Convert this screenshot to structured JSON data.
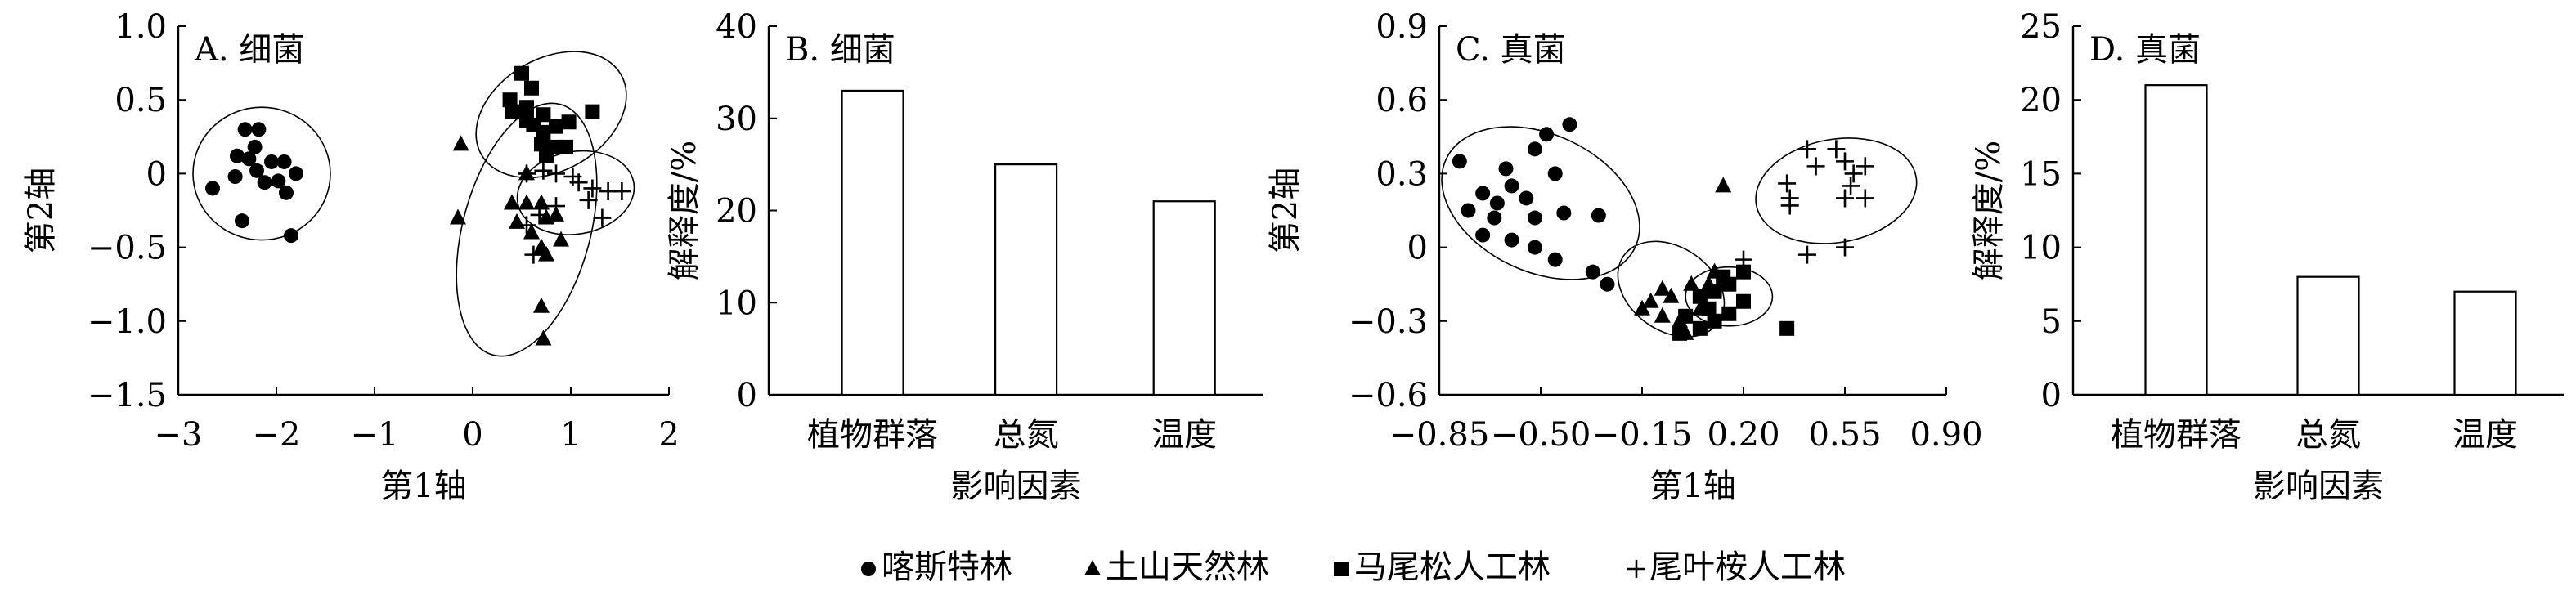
{
  "legend": {
    "items": [
      {
        "symbol": "circle",
        "label": "喀斯特林"
      },
      {
        "symbol": "triangle",
        "label": "土山天然林"
      },
      {
        "symbol": "square",
        "label": "马尾松人工林"
      },
      {
        "symbol": "plus",
        "label": "尾叶桉人工林"
      }
    ]
  },
  "chart_data": [
    {
      "id": "A",
      "type": "scatter",
      "title": "A. 细菌",
      "xlabel": "第1轴",
      "ylabel": "第2轴",
      "xlim": [
        -3,
        2
      ],
      "ylim": [
        -1.5,
        1.0
      ],
      "xticks": [
        "−3",
        "−2",
        "−1",
        "0",
        "1",
        "2"
      ],
      "yticks": [
        "1.0",
        "0.5",
        "0",
        "−0.5",
        "−1.0",
        "−1.5"
      ],
      "series": [
        {
          "name": "喀斯特林",
          "marker": "circle",
          "points": [
            [
              -2.32,
              0.3
            ],
            [
              -2.18,
              0.3
            ],
            [
              -2.4,
              0.12
            ],
            [
              -2.28,
              0.1
            ],
            [
              -2.2,
              0.02
            ],
            [
              -2.05,
              0.08
            ],
            [
              -1.92,
              0.08
            ],
            [
              -1.8,
              0.0
            ],
            [
              -2.65,
              -0.1
            ],
            [
              -2.12,
              -0.06
            ],
            [
              -1.98,
              -0.05
            ],
            [
              -1.9,
              -0.13
            ],
            [
              -2.35,
              -0.32
            ],
            [
              -1.85,
              -0.42
            ],
            [
              -2.42,
              -0.02
            ],
            [
              -2.22,
              0.18
            ]
          ]
        },
        {
          "name": "土山天然林",
          "marker": "triangle",
          "points": [
            [
              -0.12,
              0.2
            ],
            [
              0.55,
              0.0
            ],
            [
              0.4,
              -0.2
            ],
            [
              0.55,
              -0.2
            ],
            [
              0.7,
              -0.2
            ],
            [
              0.75,
              -0.3
            ],
            [
              0.85,
              -0.28
            ],
            [
              0.6,
              -0.4
            ],
            [
              0.7,
              -0.5
            ],
            [
              0.9,
              -0.45
            ],
            [
              0.75,
              -0.55
            ],
            [
              0.7,
              -0.9
            ],
            [
              0.72,
              -1.12
            ],
            [
              -0.15,
              -0.3
            ],
            [
              0.45,
              -0.33
            ]
          ]
        },
        {
          "name": "马尾松人工林",
          "marker": "square",
          "points": [
            [
              0.5,
              0.68
            ],
            [
              0.6,
              0.58
            ],
            [
              0.38,
              0.5
            ],
            [
              0.55,
              0.45
            ],
            [
              0.72,
              0.4
            ],
            [
              0.62,
              0.33
            ],
            [
              0.72,
              0.28
            ],
            [
              0.85,
              0.32
            ],
            [
              0.98,
              0.35
            ],
            [
              1.22,
              0.42
            ],
            [
              0.7,
              0.2
            ],
            [
              0.85,
              0.18
            ],
            [
              0.95,
              0.18
            ],
            [
              0.75,
              0.12
            ],
            [
              0.4,
              0.42
            ],
            [
              0.55,
              0.36
            ]
          ]
        },
        {
          "name": "尾叶桉人工林",
          "marker": "plus",
          "points": [
            [
              0.55,
              0.0
            ],
            [
              0.72,
              0.02
            ],
            [
              0.85,
              0.0
            ],
            [
              1.02,
              -0.02
            ],
            [
              1.08,
              -0.06
            ],
            [
              1.22,
              -0.1
            ],
            [
              1.38,
              -0.12
            ],
            [
              1.52,
              -0.12
            ],
            [
              1.18,
              -0.18
            ],
            [
              1.32,
              -0.3
            ],
            [
              0.55,
              -0.35
            ],
            [
              0.62,
              -0.55
            ],
            [
              0.85,
              -0.22
            ],
            [
              0.68,
              -0.28
            ]
          ]
        }
      ],
      "ellipses": [
        {
          "cx": -2.15,
          "cy": 0.0,
          "rx": 0.7,
          "ry": 0.45,
          "rot": 0
        },
        {
          "cx": 0.8,
          "cy": 0.4,
          "rx": 0.82,
          "ry": 0.38,
          "rot": -30
        },
        {
          "cx": 0.55,
          "cy": -0.38,
          "rx": 0.65,
          "ry": 0.88,
          "rot": 15
        },
        {
          "cx": 1.05,
          "cy": -0.13,
          "rx": 0.6,
          "ry": 0.28,
          "rot": -10
        }
      ]
    },
    {
      "id": "B",
      "type": "bar",
      "title": "B. 细菌",
      "xlabel": "影响因素",
      "ylabel": "解释度/%",
      "categories": [
        "植物群落",
        "总氮",
        "温度"
      ],
      "values": [
        33,
        25,
        21
      ],
      "ylim": [
        0,
        40
      ],
      "yticks": [
        "40",
        "30",
        "20",
        "10",
        "0"
      ]
    },
    {
      "id": "C",
      "type": "scatter",
      "title": "C. 真菌",
      "xlabel": "第1轴",
      "ylabel": "第2轴",
      "xlim": [
        -0.85,
        0.9
      ],
      "ylim": [
        -0.6,
        0.9
      ],
      "xticks": [
        "−0.85",
        "−0.50",
        "−0.15",
        "0.20",
        "0.55",
        "0.90"
      ],
      "yticks": [
        "0.9",
        "0.6",
        "0.3",
        "0",
        "−0.3",
        "−0.6"
      ],
      "series": [
        {
          "name": "喀斯特林",
          "marker": "circle",
          "points": [
            [
              -0.4,
              0.5
            ],
            [
              -0.48,
              0.46
            ],
            [
              -0.52,
              0.4
            ],
            [
              -0.78,
              0.35
            ],
            [
              -0.62,
              0.32
            ],
            [
              -0.45,
              0.3
            ],
            [
              -0.7,
              0.22
            ],
            [
              -0.6,
              0.25
            ],
            [
              -0.65,
              0.18
            ],
            [
              -0.55,
              0.2
            ],
            [
              -0.75,
              0.15
            ],
            [
              -0.66,
              0.12
            ],
            [
              -0.52,
              0.12
            ],
            [
              -0.42,
              0.14
            ],
            [
              -0.3,
              0.13
            ],
            [
              -0.7,
              0.05
            ],
            [
              -0.6,
              0.03
            ],
            [
              -0.52,
              0.0
            ],
            [
              -0.45,
              -0.05
            ],
            [
              -0.32,
              -0.1
            ],
            [
              -0.27,
              -0.15
            ]
          ]
        },
        {
          "name": "土山天然林",
          "marker": "triangle",
          "points": [
            [
              0.13,
              0.25
            ],
            [
              -0.08,
              -0.17
            ],
            [
              -0.12,
              -0.22
            ],
            [
              -0.05,
              -0.2
            ],
            [
              0.02,
              -0.15
            ],
            [
              0.08,
              -0.15
            ],
            [
              0.1,
              -0.1
            ],
            [
              -0.08,
              -0.28
            ],
            [
              -0.02,
              -0.3
            ],
            [
              0.05,
              -0.25
            ],
            [
              0.0,
              -0.35
            ],
            [
              -0.15,
              -0.25
            ]
          ]
        },
        {
          "name": "马尾松人工林",
          "marker": "square",
          "points": [
            [
              0.05,
              -0.2
            ],
            [
              0.1,
              -0.18
            ],
            [
              0.13,
              -0.12
            ],
            [
              0.08,
              -0.25
            ],
            [
              0.15,
              -0.27
            ],
            [
              0.2,
              -0.22
            ],
            [
              0.2,
              -0.1
            ],
            [
              0.1,
              -0.3
            ],
            [
              0.0,
              -0.28
            ],
            [
              -0.02,
              -0.35
            ],
            [
              0.35,
              -0.33
            ],
            [
              0.05,
              -0.33
            ],
            [
              0.15,
              -0.15
            ]
          ]
        },
        {
          "name": "尾叶桉人工林",
          "marker": "plus",
          "points": [
            [
              0.52,
              0.4
            ],
            [
              0.42,
              0.4
            ],
            [
              0.55,
              0.35
            ],
            [
              0.45,
              0.33
            ],
            [
              0.58,
              0.3
            ],
            [
              0.62,
              0.33
            ],
            [
              0.35,
              0.26
            ],
            [
              0.36,
              0.2
            ],
            [
              0.36,
              0.17
            ],
            [
              0.55,
              0.2
            ],
            [
              0.62,
              0.2
            ],
            [
              0.57,
              0.25
            ],
            [
              0.2,
              -0.05
            ],
            [
              0.42,
              -0.03
            ],
            [
              0.55,
              0.0
            ]
          ]
        }
      ],
      "ellipses": [
        {
          "cx": -0.5,
          "cy": 0.18,
          "rx": 0.36,
          "ry": 0.28,
          "rot": 25
        },
        {
          "cx": -0.05,
          "cy": -0.17,
          "rx": 0.2,
          "ry": 0.17,
          "rot": 35
        },
        {
          "cx": 0.15,
          "cy": -0.2,
          "rx": 0.15,
          "ry": 0.12,
          "rot": 0
        },
        {
          "cx": 0.52,
          "cy": 0.23,
          "rx": 0.28,
          "ry": 0.21,
          "rot": -10
        }
      ]
    },
    {
      "id": "D",
      "type": "bar",
      "title": "D. 真菌",
      "xlabel": "影响因素",
      "ylabel": "解释度/%",
      "categories": [
        "植物群落",
        "总氮",
        "温度"
      ],
      "values": [
        21,
        8,
        7
      ],
      "ylim": [
        0,
        25
      ],
      "yticks": [
        "25",
        "20",
        "15",
        "10",
        "5",
        "0"
      ]
    }
  ]
}
